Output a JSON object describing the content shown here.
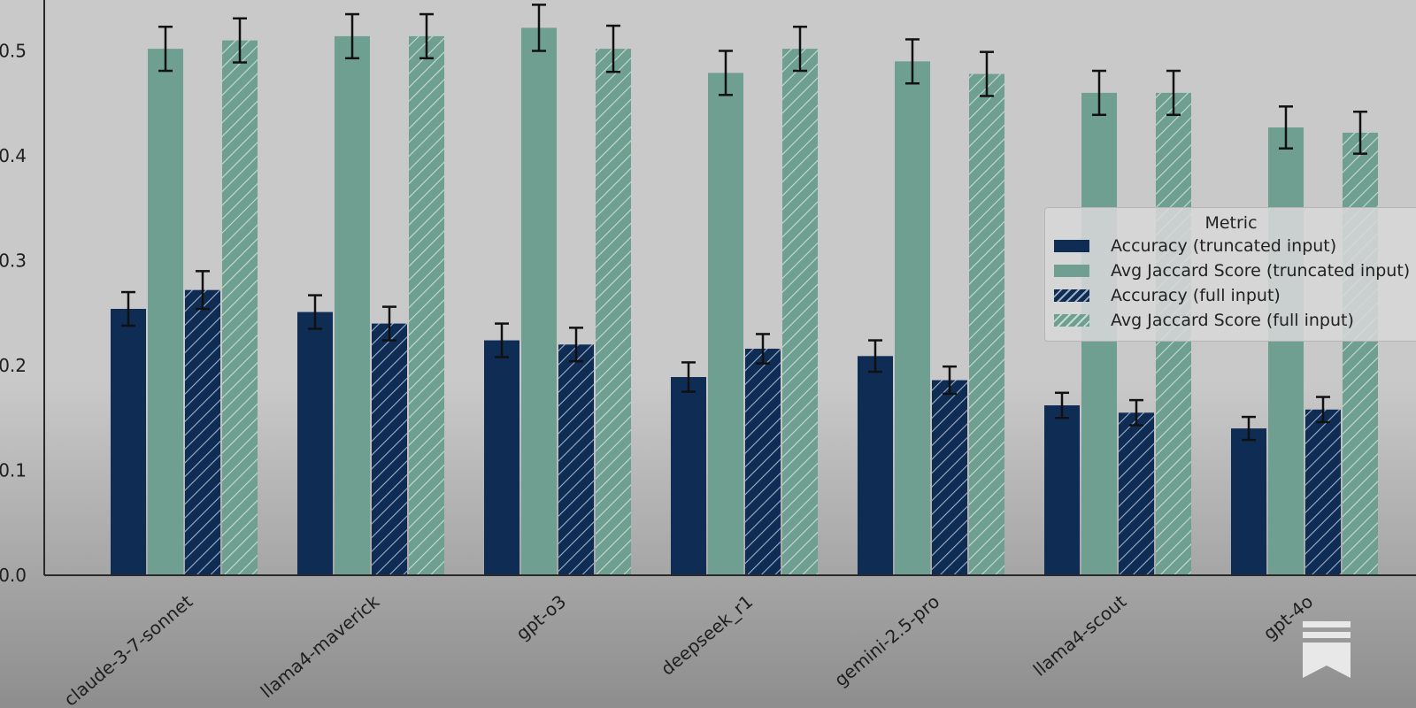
{
  "chart_data": {
    "type": "bar",
    "categories": [
      "claude-3-7-sonnet",
      "llama4-maverick",
      "gpt-o3",
      "deepseek_r1",
      "gemini-2.5-pro",
      "llama4-scout",
      "gpt-4o"
    ],
    "series": [
      {
        "name": "Accuracy (truncated input)",
        "values": [
          0.254,
          0.251,
          0.224,
          0.189,
          0.209,
          0.162,
          0.14
        ],
        "errors": [
          0.016,
          0.016,
          0.016,
          0.014,
          0.015,
          0.012,
          0.011
        ],
        "color": "#0f2c55",
        "hatch": false
      },
      {
        "name": "Avg Jaccard Score (truncated input)",
        "values": [
          0.502,
          0.514,
          0.522,
          0.479,
          0.49,
          0.46,
          0.427
        ],
        "errors": [
          0.021,
          0.021,
          0.022,
          0.021,
          0.021,
          0.021,
          0.02
        ],
        "color": "#6f9f90",
        "hatch": false
      },
      {
        "name": "Accuracy (full input)",
        "values": [
          0.272,
          0.24,
          0.22,
          0.216,
          0.186,
          0.155,
          0.158
        ],
        "errors": [
          0.018,
          0.016,
          0.016,
          0.014,
          0.013,
          0.012,
          0.012
        ],
        "color": "#0f2c55",
        "hatch": true
      },
      {
        "name": "Avg Jaccard Score (full input)",
        "values": [
          0.51,
          0.514,
          0.502,
          0.502,
          0.478,
          0.46,
          0.422
        ],
        "errors": [
          0.021,
          0.021,
          0.022,
          0.021,
          0.021,
          0.021,
          0.02
        ],
        "color": "#6f9f90",
        "hatch": true
      }
    ],
    "yticks": [
      "0.0",
      "0.1",
      "0.2",
      "0.3",
      "0.4",
      "0.5"
    ],
    "ylim": [
      0,
      0.55
    ],
    "legend": {
      "title": "Metric",
      "placement": "right"
    }
  },
  "icons": {
    "brand": "bookmark-stripes-icon"
  },
  "colors": {
    "accuracy": "#0f2c55",
    "jaccard": "#6f9f90",
    "axis": "#2a2a2a"
  }
}
